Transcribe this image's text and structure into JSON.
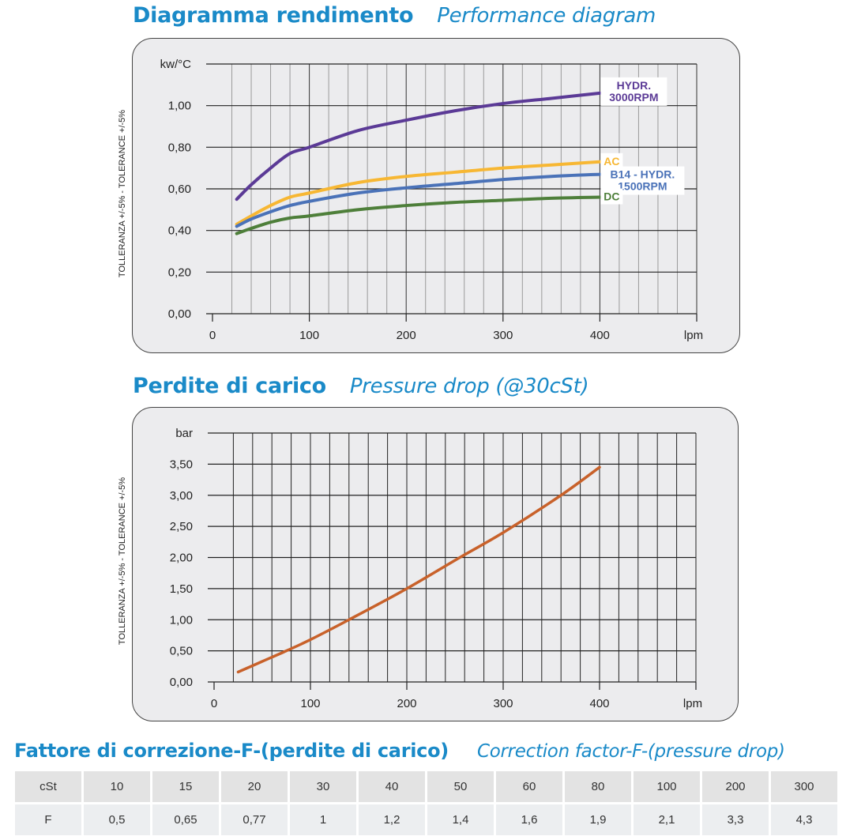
{
  "titles": {
    "chart1_it": "Diagramma rendimento",
    "chart1_en": "Performance diagram",
    "chart2_it": "Perdite di carico",
    "chart2_en": "Pressure drop  (@30cSt)",
    "table_it": "Fattore di correzione-F-(perdite di carico)",
    "table_en": "Correction factor-F-(pressure drop)"
  },
  "chart_data": [
    {
      "type": "line",
      "title": "Diagramma rendimento / Performance diagram",
      "ylabel": "TOLLERANZA +/-5% - TOLERANCE +/-5%",
      "yunit": "kw/°C",
      "xunit": "lpm",
      "xlim": [
        0,
        500
      ],
      "ylim": [
        0,
        1.2
      ],
      "xticks": [
        "0",
        "100",
        "200",
        "300",
        "400"
      ],
      "yticks": [
        "0,00",
        "0,20",
        "0,40",
        "0,60",
        "0,80",
        "1,00"
      ],
      "grid": true,
      "series": [
        {
          "name": "HYDR. 3000RPM",
          "label_lines": [
            "HYDR.",
            "3000RPM"
          ],
          "color": "#5b3a96",
          "x": [
            25,
            40,
            60,
            80,
            100,
            150,
            200,
            250,
            300,
            350,
            400
          ],
          "y": [
            0.55,
            0.62,
            0.7,
            0.77,
            0.8,
            0.88,
            0.93,
            0.975,
            1.01,
            1.035,
            1.06
          ]
        },
        {
          "name": "AC",
          "label_lines": [
            "AC"
          ],
          "color": "#f7b733",
          "x": [
            25,
            40,
            60,
            80,
            100,
            150,
            200,
            250,
            300,
            350,
            400
          ],
          "y": [
            0.43,
            0.47,
            0.52,
            0.56,
            0.58,
            0.63,
            0.66,
            0.68,
            0.7,
            0.715,
            0.73
          ]
        },
        {
          "name": "B14 - HYDR. 1500RPM",
          "label_lines": [
            "B14 - HYDR.",
            "1500RPM"
          ],
          "color": "#4a72b8",
          "x": [
            25,
            40,
            60,
            80,
            100,
            150,
            200,
            250,
            300,
            350,
            400
          ],
          "y": [
            0.42,
            0.455,
            0.49,
            0.52,
            0.54,
            0.58,
            0.605,
            0.625,
            0.645,
            0.66,
            0.67
          ]
        },
        {
          "name": "DC",
          "label_lines": [
            "DC"
          ],
          "color": "#4e7f3a",
          "x": [
            25,
            40,
            60,
            80,
            100,
            150,
            200,
            250,
            300,
            350,
            400
          ],
          "y": [
            0.385,
            0.41,
            0.44,
            0.46,
            0.47,
            0.5,
            0.52,
            0.535,
            0.545,
            0.555,
            0.56
          ]
        }
      ]
    },
    {
      "type": "line",
      "title": "Perdite di carico / Pressure drop (@30cSt)",
      "ylabel": "TOLLERANZA +/-5% - TOLERANCE +/-5%",
      "yunit": "bar",
      "xunit": "lpm",
      "xlim": [
        0,
        500
      ],
      "ylim": [
        0,
        4.0
      ],
      "xticks": [
        "0",
        "100",
        "200",
        "300",
        "400"
      ],
      "yticks": [
        "0,00",
        "0,50",
        "1,00",
        "1,50",
        "2,00",
        "2,50",
        "3,00",
        "3,50"
      ],
      "grid": true,
      "series": [
        {
          "color": "#c8612a",
          "x": [
            25,
            50,
            75,
            100,
            140,
            200,
            255,
            300,
            360,
            400
          ],
          "y": [
            0.16,
            0.33,
            0.5,
            0.68,
            1.0,
            1.5,
            2.0,
            2.4,
            3.0,
            3.45
          ]
        }
      ]
    }
  ],
  "table": {
    "rows": [
      [
        "cSt",
        "10",
        "15",
        "20",
        "30",
        "40",
        "50",
        "60",
        "80",
        "100",
        "200",
        "300"
      ],
      [
        "F",
        "0,5",
        "0,65",
        "0,77",
        "1",
        "1,2",
        "1,4",
        "1,6",
        "1,9",
        "2,1",
        "3,3",
        "4,3"
      ]
    ]
  }
}
